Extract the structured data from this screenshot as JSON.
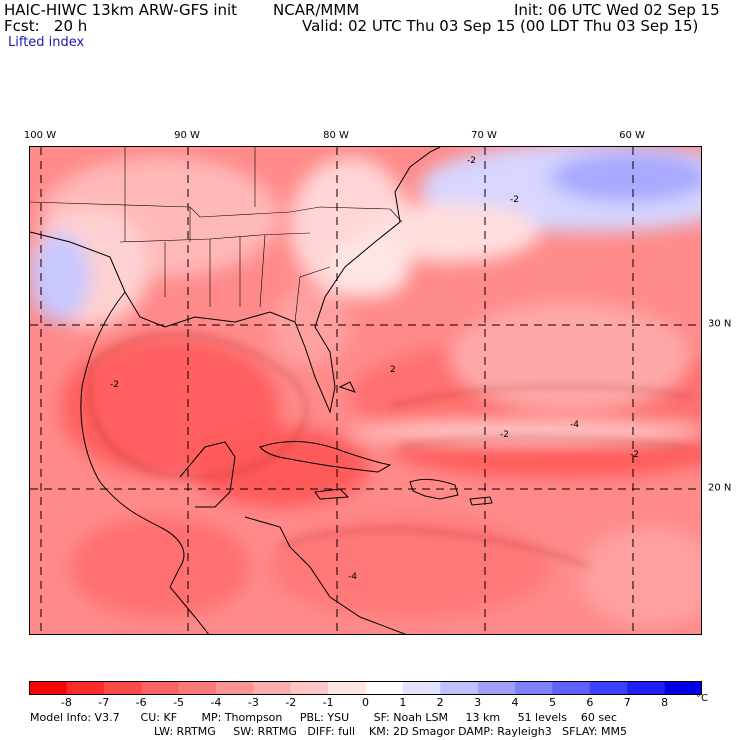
{
  "header": {
    "model_title": "HAIC-HIWC 13km ARW-GFS init",
    "org": "NCAR/MMM",
    "init": "Init: 06 UTC Wed 02 Sep 15",
    "fcst": "Fcst:   20 h",
    "valid": "Valid: 02 UTC Thu 03 Sep 15 (00 LDT Thu 03 Sep 15)",
    "field": "Lifted index"
  },
  "map": {
    "lon_labels": [
      "100 W",
      "90 W",
      "80 W",
      "70 W",
      "60 W"
    ],
    "lat_labels": [
      "30 N",
      "20 N"
    ],
    "contour_labels": [
      "-2",
      "-4",
      "-2",
      "-2",
      "-4",
      "-2",
      "-2",
      "2"
    ]
  },
  "colorbar": {
    "labels": [
      "-8",
      "-7",
      "-6",
      "-5",
      "-4",
      "-3",
      "-2",
      "-1",
      "0",
      "1",
      "2",
      "3",
      "4",
      "5",
      "6",
      "7",
      "8"
    ],
    "unit": "°C",
    "colors": [
      "#ff0000",
      "#ff2a2a",
      "#ff4848",
      "#ff6262",
      "#ff7b7b",
      "#ff9393",
      "#ffadad",
      "#ffc8c8",
      "#ffe6e6",
      "#ffffff",
      "#e2e2ff",
      "#c0c0ff",
      "#a0a0ff",
      "#8080ff",
      "#6060ff",
      "#4040ff",
      "#2020ff",
      "#0000e6"
    ]
  },
  "info": {
    "line1": "Model Info: V3.7      CU: KF       MP: Thompson     PBL: YSU       SF: Noah LSM     13 km     51 levels    60 sec",
    "line2": "LW: RRTMG     SW: RRTMG   DIFF: full    KM: 2D Smagor DAMP: Rayleigh3   SFLAY: MM5"
  }
}
